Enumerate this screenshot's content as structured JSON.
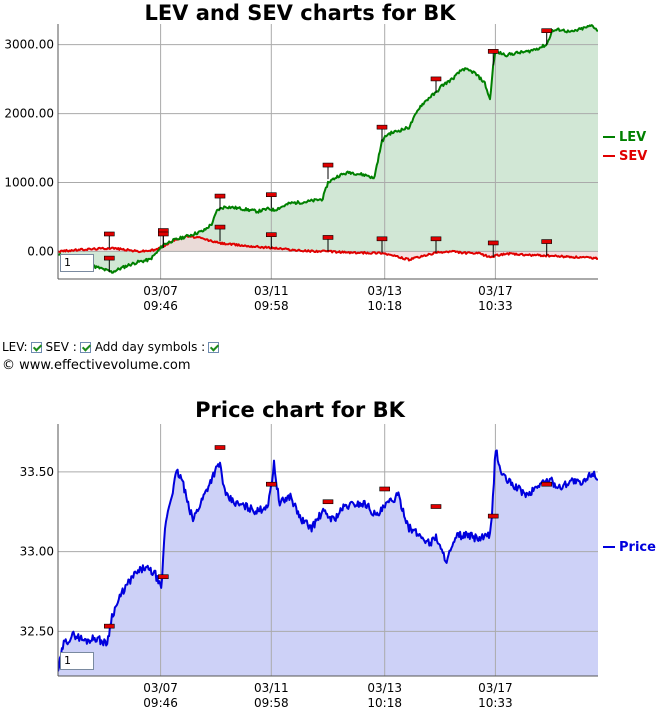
{
  "top_chart": {
    "title": "LEV and SEV charts for BK",
    "zoom_value": "1"
  },
  "controls": {
    "lev_label": "LEV:",
    "sev_label": "SEV :",
    "day_symbols_label": "Add day symbols :",
    "lev_checked": true,
    "sev_checked": true,
    "day_symbols_checked": true
  },
  "copyright": "© www.effectivevolume.com",
  "bottom_chart": {
    "title": "Price chart for BK",
    "zoom_value": "1"
  },
  "colors": {
    "lev": "#008000",
    "sev": "#e00000",
    "lev_fill": "#cfe6d3",
    "sev_fill": "#f0d8d8",
    "price": "#0000dd",
    "price_fill": "#cdd1f7",
    "grid": "#aaaaaa",
    "marker": "#e00000"
  },
  "chart_data": [
    {
      "type": "area",
      "title": "LEV and SEV charts for BK",
      "ylim": [
        -400,
        3300
      ],
      "yticks": [
        0,
        1000,
        2000,
        3000
      ],
      "ytick_labels": [
        "0.00",
        "1000.00",
        "2000.00",
        "3000.00"
      ],
      "xlim": [
        0,
        100
      ],
      "xticks": [
        {
          "x": 19,
          "date": "03/07",
          "time": "09:46"
        },
        {
          "x": 39.5,
          "date": "03/11",
          "time": "09:58"
        },
        {
          "x": 60.5,
          "date": "03/13",
          "time": "10:18"
        },
        {
          "x": 81,
          "date": "03/17",
          "time": "10:33"
        }
      ],
      "grid": true,
      "legend_position": "right",
      "series": [
        {
          "name": "LEV",
          "x": [
            0,
            4,
            6,
            8,
            10,
            13,
            15,
            17,
            18.5,
            19.5,
            21,
            23,
            25,
            27,
            28.5,
            29.5,
            31,
            34,
            37,
            39,
            40,
            43,
            46,
            49,
            50,
            52,
            54,
            56,
            57.5,
            58.5,
            60,
            61,
            63,
            65,
            67,
            69,
            70,
            71,
            73,
            75,
            77,
            79,
            80,
            80.6,
            81,
            83,
            85,
            87,
            89,
            90.5,
            91.5,
            93,
            95,
            97,
            99,
            100
          ],
          "y": [
            -50,
            -100,
            -200,
            -250,
            -300,
            -200,
            -150,
            -120,
            0,
            100,
            150,
            200,
            250,
            300,
            400,
            600,
            650,
            620,
            580,
            620,
            600,
            700,
            720,
            760,
            1000,
            1100,
            1150,
            1120,
            1100,
            1050,
            1600,
            1700,
            1750,
            1800,
            2100,
            2250,
            2300,
            2400,
            2500,
            2650,
            2600,
            2450,
            2200,
            2700,
            2900,
            2850,
            2880,
            2900,
            2950,
            3000,
            3200,
            3220,
            3180,
            3230,
            3280,
            3200
          ]
        },
        {
          "name": "SEV",
          "x": [
            0,
            5,
            10,
            15,
            18,
            20,
            22,
            24,
            26,
            30,
            35,
            40,
            45,
            50,
            55,
            60,
            63,
            65,
            68,
            70,
            73,
            75,
            78,
            80,
            83,
            86,
            90,
            95,
            100
          ],
          "y": [
            0,
            30,
            50,
            0,
            20,
            100,
            180,
            220,
            200,
            120,
            80,
            50,
            10,
            0,
            -20,
            -20,
            -80,
            -120,
            -60,
            -20,
            0,
            -20,
            -30,
            -80,
            -30,
            -50,
            -60,
            -80,
            -100
          ]
        }
      ],
      "markers": [
        {
          "series": "LEV",
          "x": 9.5,
          "y": -300
        },
        {
          "series": "SEV",
          "x": 9.5,
          "y": 50
        },
        {
          "series": "LEV",
          "x": 19.5,
          "y": 100
        },
        {
          "series": "SEV",
          "x": 19.5,
          "y": 50
        },
        {
          "series": "LEV",
          "x": 30,
          "y": 600
        },
        {
          "series": "SEV",
          "x": 30,
          "y": 150
        },
        {
          "series": "LEV",
          "x": 39.5,
          "y": 620
        },
        {
          "series": "SEV",
          "x": 39.5,
          "y": 40
        },
        {
          "series": "LEV",
          "x": 50,
          "y": 1050
        },
        {
          "series": "SEV",
          "x": 50,
          "y": 0
        },
        {
          "series": "LEV",
          "x": 60,
          "y": 1600
        },
        {
          "series": "SEV",
          "x": 60,
          "y": -20
        },
        {
          "series": "LEV",
          "x": 70,
          "y": 2300
        },
        {
          "series": "SEV",
          "x": 70,
          "y": -20
        },
        {
          "series": "LEV",
          "x": 80.6,
          "y": 2700
        },
        {
          "series": "SEV",
          "x": 80.6,
          "y": -80
        },
        {
          "series": "LEV",
          "x": 90.5,
          "y": 3000
        },
        {
          "series": "SEV",
          "x": 90.5,
          "y": -60
        }
      ]
    },
    {
      "type": "area",
      "title": "Price chart for BK",
      "ylim": [
        32.22,
        33.8
      ],
      "yticks": [
        32.5,
        33.0,
        33.5
      ],
      "ytick_labels": [
        "32.50",
        "33.00",
        "33.50"
      ],
      "xlim": [
        0,
        100
      ],
      "xticks": [
        {
          "x": 19,
          "date": "03/07",
          "time": "09:46"
        },
        {
          "x": 39.5,
          "date": "03/11",
          "time": "09:58"
        },
        {
          "x": 60.5,
          "date": "03/13",
          "time": "10:18"
        },
        {
          "x": 81,
          "date": "03/17",
          "time": "10:33"
        }
      ],
      "grid": true,
      "legend_position": "right",
      "series": [
        {
          "name": "Price",
          "x": [
            0,
            1,
            3,
            5,
            7,
            9,
            9.5,
            10,
            12,
            14,
            16,
            18,
            19.2,
            19.5,
            20,
            22,
            23,
            24,
            25,
            27,
            29,
            30,
            31,
            33,
            35,
            37,
            39,
            40,
            41,
            43,
            45,
            47,
            49,
            51,
            53,
            55,
            57,
            59,
            61,
            63,
            65,
            67,
            69,
            70,
            71,
            72,
            74,
            76,
            78,
            80,
            80.5,
            81,
            82,
            83,
            85,
            87,
            89,
            91,
            93,
            95,
            97,
            99,
            100
          ],
          "y": [
            32.25,
            32.42,
            32.48,
            32.44,
            32.46,
            32.42,
            32.5,
            32.6,
            32.75,
            32.85,
            32.9,
            32.86,
            32.75,
            33.0,
            33.2,
            33.5,
            33.45,
            33.3,
            33.2,
            33.35,
            33.5,
            33.55,
            33.35,
            33.3,
            33.28,
            33.25,
            33.3,
            33.55,
            33.3,
            33.35,
            33.2,
            33.15,
            33.25,
            33.2,
            33.28,
            33.3,
            33.3,
            33.22,
            33.3,
            33.35,
            33.15,
            33.1,
            33.05,
            33.1,
            33.0,
            32.95,
            33.1,
            33.1,
            33.08,
            33.1,
            33.3,
            33.65,
            33.5,
            33.45,
            33.4,
            33.35,
            33.42,
            33.45,
            33.4,
            33.45,
            33.42,
            33.5,
            33.45
          ]
        }
      ],
      "markers": [
        {
          "x": 9.5,
          "y": 32.52
        },
        {
          "x": 19.5,
          "y": 32.83
        },
        {
          "x": 30,
          "y": 33.64
        },
        {
          "x": 39.5,
          "y": 33.41
        },
        {
          "x": 50,
          "y": 33.3
        },
        {
          "x": 60.5,
          "y": 33.38
        },
        {
          "x": 70,
          "y": 33.27
        },
        {
          "x": 80.6,
          "y": 33.21
        },
        {
          "x": 90.5,
          "y": 33.41
        }
      ]
    }
  ]
}
